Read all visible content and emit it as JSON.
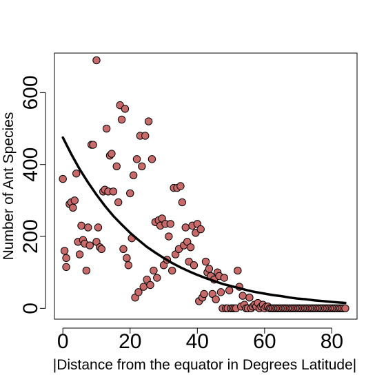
{
  "chart_data": {
    "type": "scatter",
    "title": "",
    "xlabel": "|Distance from the equator in Degrees Latitude|",
    "ylabel": "Number of Ant Species",
    "xlim": [
      -2.5,
      87.5
    ],
    "ylim": [
      -30,
      710
    ],
    "x_ticks": [
      0,
      20,
      40,
      60,
      80
    ],
    "y_ticks": [
      0,
      200,
      400,
      600
    ],
    "x_tick_labels": [
      "0",
      "20",
      "40",
      "60",
      "80"
    ],
    "y_tick_labels": [
      "0",
      "200",
      "400",
      "600"
    ],
    "grid": false,
    "point_color": "#c96a6a",
    "point_edge": "#000000",
    "line_color": "#000000",
    "series": [
      {
        "name": "observations",
        "kind": "points",
        "x": [
          0,
          0.5,
          1,
          1,
          2,
          2.5,
          3,
          3.5,
          4,
          4.5,
          5,
          5.5,
          6,
          6.5,
          7,
          7.5,
          8,
          8.5,
          9,
          10,
          10,
          10.5,
          11,
          11.5,
          12,
          12.5,
          13,
          13.5,
          14,
          14.5,
          15,
          16,
          16.5,
          17,
          17.5,
          18,
          18.5,
          19,
          19.5,
          20,
          20.5,
          21,
          21.5,
          22,
          22.5,
          23,
          23.5,
          24,
          24.5,
          25,
          25.5,
          26,
          26.5,
          27,
          27.5,
          28,
          28.5,
          29,
          29.5,
          30,
          30.5,
          31,
          31.5,
          32,
          32.5,
          33,
          33.5,
          34,
          34.5,
          35,
          35.5,
          36,
          36.5,
          37,
          37.5,
          38,
          38.5,
          39,
          39.5,
          40,
          40.5,
          41,
          41.5,
          42,
          42.5,
          43,
          43.5,
          44,
          44.5,
          45,
          45.5,
          46,
          46.5,
          47,
          47.5,
          48,
          48.5,
          49,
          49.5,
          50,
          50.5,
          51,
          51.5,
          52,
          52.5,
          53,
          53.5,
          54,
          54.5,
          55,
          55.5,
          56,
          56.5,
          57,
          57.5,
          58,
          58.5,
          59,
          59.5,
          60,
          60.5,
          61,
          61.5,
          62,
          62.5,
          63,
          63.5,
          64,
          64.5,
          65,
          65.5,
          66,
          66.5,
          67,
          67.5,
          68,
          68.5,
          69,
          69.5,
          70,
          70.5,
          71,
          71.5,
          72,
          72.5,
          73,
          73.5,
          74,
          74.5,
          75,
          75.5,
          76,
          76.5,
          77,
          77.5,
          78,
          78.5,
          79,
          79.5,
          80,
          80.5,
          81,
          81.5,
          82,
          82.5,
          83,
          83.5,
          84
        ],
        "y": [
          360,
          160,
          140,
          115,
          290,
          295,
          280,
          300,
          375,
          185,
          150,
          230,
          190,
          180,
          105,
          225,
          175,
          455,
          455,
          185,
          690,
          225,
          170,
          165,
          325,
          330,
          500,
          325,
          425,
          430,
          325,
          395,
          295,
          565,
          525,
          165,
          555,
          140,
          120,
          320,
          195,
          370,
          30,
          415,
          45,
          480,
          395,
          60,
          480,
          80,
          520,
          65,
          415,
          105,
          240,
          85,
          245,
          230,
          250,
          120,
          235,
          135,
          200,
          235,
          105,
          335,
          150,
          335,
          165,
          340,
          295,
          175,
          225,
          185,
          130,
          170,
          230,
          120,
          210,
          235,
          20,
          220,
          30,
          40,
          130,
          100,
          110,
          90,
          40,
          80,
          25,
          100,
          90,
          45,
          0,
          85,
          0,
          0,
          50,
          0,
          0,
          0,
          0,
          105,
          60,
          5,
          35,
          10,
          0,
          0,
          30,
          0,
          5,
          10,
          5,
          15,
          0,
          5,
          10,
          0,
          5,
          5,
          0,
          0,
          0,
          0,
          0,
          0,
          0,
          0,
          0,
          0,
          0,
          0,
          0,
          0,
          0,
          0,
          0,
          0,
          0,
          0,
          0,
          0,
          0,
          0,
          0,
          0,
          0,
          0,
          0,
          0,
          0,
          0,
          0,
          0,
          0,
          0,
          0,
          0,
          0,
          0,
          0,
          0,
          0,
          0,
          0,
          0
        ]
      },
      {
        "name": "exponential fit",
        "kind": "line",
        "x": [
          0,
          2.5,
          5,
          7.5,
          10,
          12.5,
          15,
          17.5,
          20,
          22.5,
          25,
          27.5,
          30,
          32.5,
          35,
          37.5,
          40,
          42.5,
          45,
          47.5,
          50,
          52.5,
          55,
          57.5,
          60,
          62.5,
          65,
          67.5,
          70,
          72.5,
          75,
          77.5,
          80,
          82.5,
          84
        ],
        "y": [
          475,
          429,
          387,
          350,
          316,
          285,
          257,
          233,
          210,
          190,
          171,
          155,
          140,
          126,
          114,
          103,
          93,
          84,
          76,
          68,
          62,
          56,
          50,
          45,
          41,
          37,
          34,
          30,
          27,
          25,
          22,
          20,
          18,
          16,
          15
        ]
      }
    ]
  }
}
